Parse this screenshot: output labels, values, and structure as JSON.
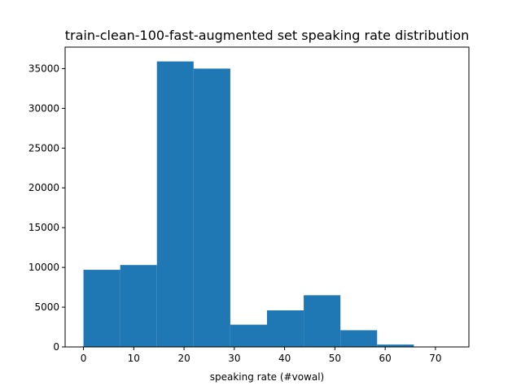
{
  "chart_data": {
    "type": "bar",
    "title": "train-clean-100-fast-augmented set speaking rate distribution",
    "xlabel": "speaking rate (#vowal)",
    "ylabel": "",
    "bin_edges": [
      0,
      7.3,
      14.6,
      21.9,
      29.2,
      36.5,
      43.8,
      51.1,
      58.4,
      65.7,
      73.0
    ],
    "values": [
      9700,
      10300,
      35900,
      35000,
      2800,
      4600,
      6500,
      2100,
      300,
      50
    ],
    "xlim": [
      -3.65,
      76.65
    ],
    "ylim": [
      0,
      37700
    ],
    "xticks": [
      0,
      10,
      20,
      30,
      40,
      50,
      60,
      70
    ],
    "yticks": [
      0,
      5000,
      10000,
      15000,
      20000,
      25000,
      30000,
      35000
    ],
    "bar_color": "#1f77b4",
    "grid": false,
    "legend": "none"
  }
}
